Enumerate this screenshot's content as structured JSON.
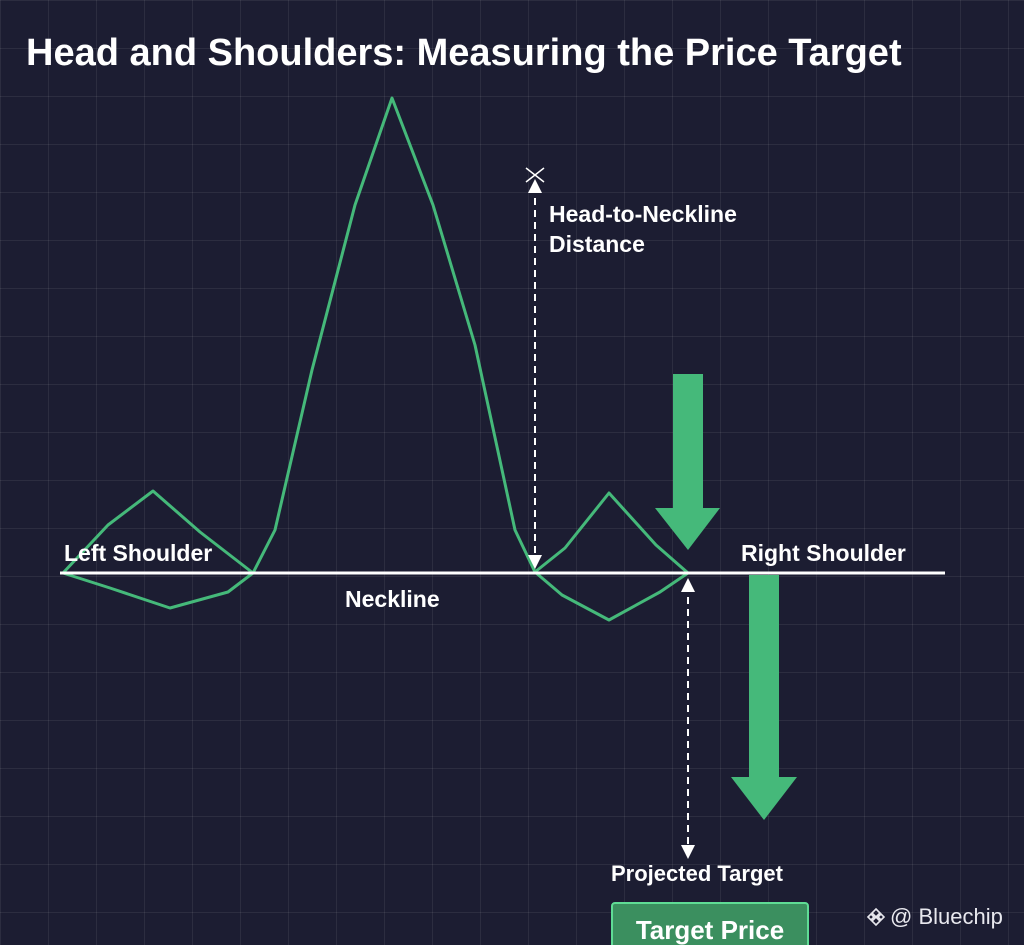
{
  "title": "Head and Shoulders: Measuring the Price Target",
  "labels": {
    "left_shoulder": "Left Shoulder",
    "right_shoulder": "Right Shoulder",
    "neckline": "Neckline",
    "distance_line1": "Head-to-Neckline",
    "distance_line2": "Distance",
    "projected_target": "Projected Target",
    "target_price": "Target Price"
  },
  "watermark": {
    "symbol": "@",
    "text": "Bluechip",
    "icon": "diamond-logo-icon"
  },
  "colors": {
    "background": "#1c1d32",
    "price_line": "#45b97a",
    "arrow": "#45b97a",
    "neckline": "#ffffff",
    "text": "#ffffff"
  }
}
